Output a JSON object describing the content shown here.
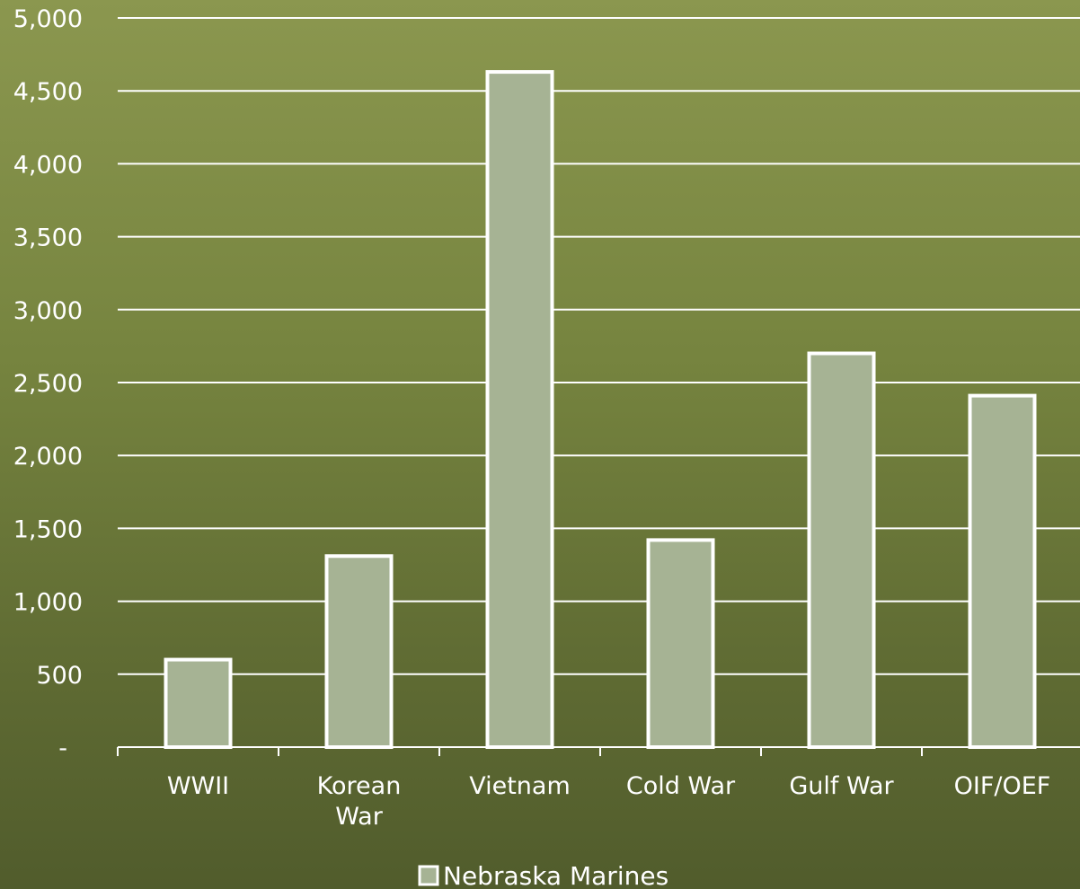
{
  "chart_data": {
    "type": "bar",
    "title": "",
    "xlabel": "",
    "ylabel": "",
    "categories": [
      "WWII",
      "Korean War",
      "Vietnam",
      "Cold War",
      "Gulf War",
      "OIF/OEF"
    ],
    "category_label_lines": [
      [
        "WWII"
      ],
      [
        "Korean",
        "War"
      ],
      [
        "Vietnam"
      ],
      [
        "Cold War"
      ],
      [
        "Gulf War"
      ],
      [
        "OIF/OEF"
      ]
    ],
    "series": [
      {
        "name": "Nebraska Marines",
        "values": [
          600,
          1310,
          4630,
          1420,
          2700,
          2410
        ]
      }
    ],
    "ylim": [
      0,
      5000
    ],
    "yticks": [
      0,
      500,
      1000,
      1500,
      2000,
      2500,
      3000,
      3500,
      4000,
      4500,
      5000
    ],
    "ytick_labels": [
      "-",
      "500",
      "1,000",
      "1,500",
      "2,000",
      "2,500",
      "3,000",
      "3,500",
      "4,000",
      "4,500",
      "5,000"
    ],
    "grid": true,
    "legend_position": "bottom",
    "colors": {
      "bar_fill": "#a6b394",
      "bar_stroke": "#ffffff",
      "gridline": "#ffffff",
      "text": "#ffffff"
    }
  }
}
